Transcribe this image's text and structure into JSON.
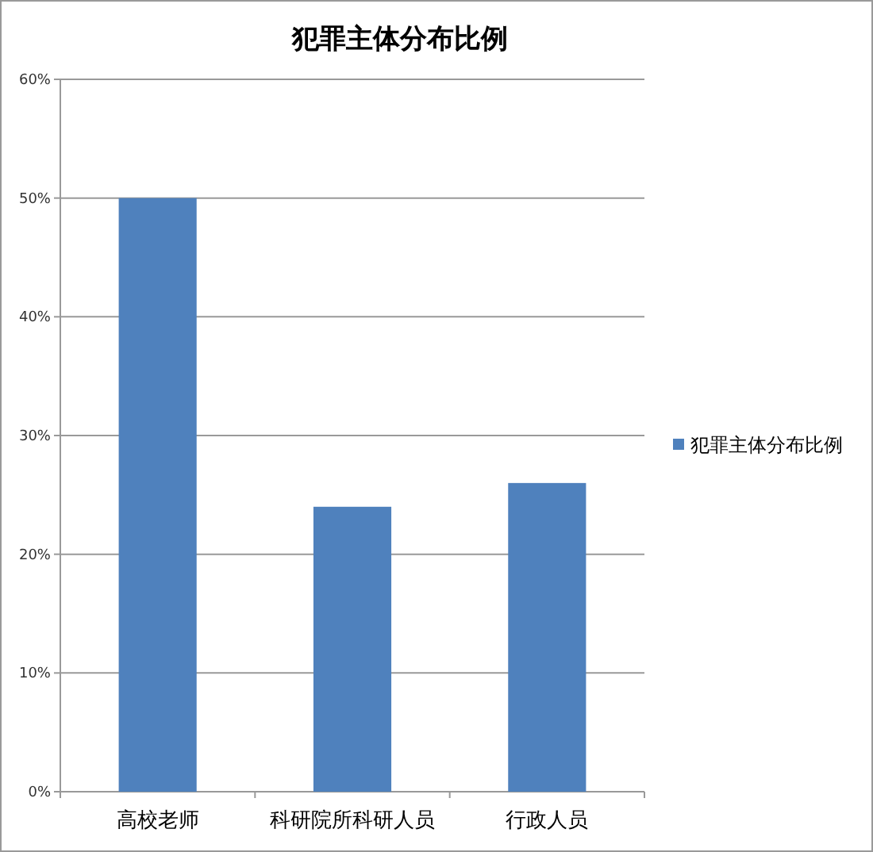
{
  "chart_data": {
    "type": "bar",
    "title": "犯罪主体分布比例",
    "categories": [
      "高校老师",
      "科研院所科研人员",
      "行政人员"
    ],
    "series": [
      {
        "name": "犯罪主体分布比例",
        "color": "#4f81bd",
        "values": [
          50,
          24,
          26
        ]
      }
    ],
    "ylim": [
      0,
      60
    ],
    "yticks": [
      {
        "value": 0,
        "label": "0%"
      },
      {
        "value": 10,
        "label": "10%"
      },
      {
        "value": 20,
        "label": "20%"
      },
      {
        "value": 30,
        "label": "30%"
      },
      {
        "value": 40,
        "label": "40%"
      },
      {
        "value": 50,
        "label": "50%"
      },
      {
        "value": 60,
        "label": "60%"
      }
    ],
    "grid": "y",
    "legend": "right"
  }
}
